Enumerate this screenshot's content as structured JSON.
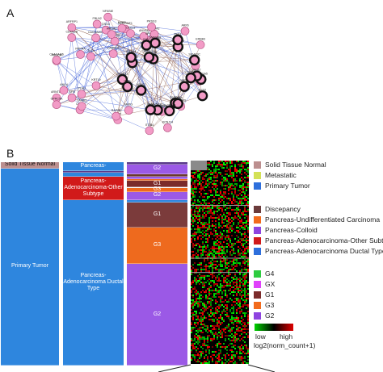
{
  "panel_a": {
    "letter": "A",
    "node_labels": [
      "CACNA2D1",
      "ARFRP1",
      "FBLN2",
      "KCNJ14",
      "NFKBIE",
      "SERPINE1",
      "ANXA1",
      "RPPRA",
      "ITGB4",
      "ARF6",
      "ADAM9",
      "EGFR",
      "KRT7",
      "ERBB3",
      "SFN",
      "SPRR1B",
      "EPHB4",
      "CDH3",
      "KLK7",
      "CXCL5",
      "ARNTL2",
      "S100A2",
      "PIK3CA",
      "MST1R",
      "TLE4",
      "DSG3",
      "HMGA2",
      "LAMB3",
      "GPRC5A",
      "KRT19",
      "MATG",
      "FAM83A",
      "RAP2B",
      "PLAU",
      "PRSS3",
      "CEACAM6",
      "CDKN2B",
      "MTMR4",
      "ANLN",
      "PFKP",
      "ZFP36L1",
      "SLC2A1",
      "SEMA3C",
      "RPS6KA5",
      "TMPRSS4",
      "CYP26B1",
      "AHNAK2",
      "MKI67",
      "CEP55",
      "GJB2",
      "PMEPA1",
      "ECT2",
      "UBE2C",
      "CTRL",
      "BAK1",
      "SLC6A14",
      "NPAS2",
      "CLDN18",
      "MAP4K5",
      "PHF1",
      "SMAD4"
    ],
    "bold_node_count": 22
  },
  "panel_b": {
    "letter": "B",
    "bar1": [
      {
        "label": "Solid Tissue Normal",
        "color": "#bc8f8f",
        "fraction": 0.03
      },
      {
        "label": "Primary Tumor",
        "color": "#2e86de",
        "fraction": 0.97
      }
    ],
    "bar2": [
      {
        "label": "Pancreas-",
        "color": "#2e86de",
        "fraction": 0.045
      },
      {
        "label": "",
        "color": "#5a3a8a",
        "fraction": 0.008
      },
      {
        "label": "",
        "color": "#2e86de",
        "fraction": 0.02
      },
      {
        "label": "Pancreas-Adenocarcinoma-Other Subtype",
        "color": "#d11a1a",
        "fraction": 0.115
      },
      {
        "label": "Pancreas-Adenocarcinoma Ductal Type",
        "color": "#2e86de",
        "fraction": 0.812
      }
    ],
    "bar3": [
      {
        "label": "",
        "color": "#5a3a8a",
        "fraction": 0.01
      },
      {
        "label": "G2",
        "color": "#9b59e6",
        "fraction": 0.05
      },
      {
        "label": "",
        "color": "#6b3b2b",
        "fraction": 0.01
      },
      {
        "label": "",
        "color": "#9b59e6",
        "fraction": 0.015
      },
      {
        "label": "",
        "color": "#ee6a1e",
        "fraction": 0.008
      },
      {
        "label": "G1",
        "color": "#7b2b2b",
        "fraction": 0.032
      },
      {
        "label": "G3",
        "color": "#ee6a1e",
        "fraction": 0.02
      },
      {
        "label": "G2",
        "color": "#9b59e6",
        "fraction": 0.04
      },
      {
        "label": "",
        "color": "#2e86de",
        "fraction": 0.015
      },
      {
        "label": "G1",
        "color": "#7b3b3b",
        "fraction": 0.12
      },
      {
        "label": "G3",
        "color": "#ee6a1e",
        "fraction": 0.18
      },
      {
        "label": "G2",
        "color": "#9b59e6",
        "fraction": 0.5
      }
    ],
    "legend": {
      "group1": [
        {
          "label": "Solid Tissue Normal",
          "color": "#bc8f8f"
        },
        {
          "label": "Metastatic",
          "color": "#d4e157"
        },
        {
          "label": "Primary Tumor",
          "color": "#2e6fdc"
        }
      ],
      "group2": [
        {
          "label": "Discepancy",
          "color": "#6b3b3b"
        },
        {
          "label": "Pancreas-Undifferentiated Carcinoma",
          "color": "#f26b1d"
        },
        {
          "label": "Pancreas-Colloid",
          "color": "#8e44e0"
        },
        {
          "label": "Pancreas-Adenocarcinoma-Other Subtype",
          "color": "#d11a1a"
        },
        {
          "label": "Pancreas-Adenocarcinoma Ductal Type",
          "color": "#2e6fdc"
        }
      ],
      "group3": [
        {
          "label": "G4",
          "color": "#2ecc40"
        },
        {
          "label": "GX",
          "color": "#e040fb"
        },
        {
          "label": "G1",
          "color": "#7b2b2b"
        },
        {
          "label": "G3",
          "color": "#f26b1d"
        },
        {
          "label": "G2",
          "color": "#8e44e0"
        }
      ]
    },
    "scale": {
      "low": "low",
      "high": "high",
      "title": "log2(norm_count+1)"
    }
  }
}
